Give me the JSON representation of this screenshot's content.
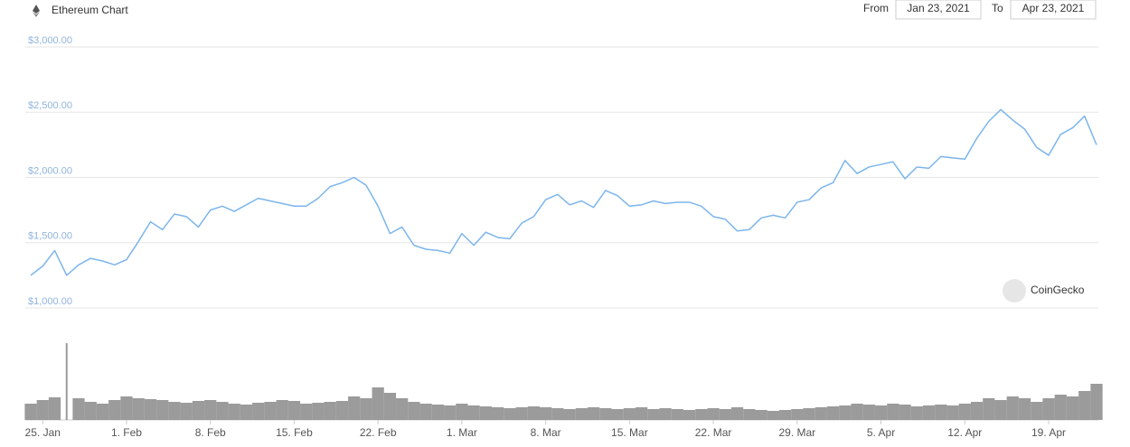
{
  "chart_data": {
    "type": "line",
    "title": "Ethereum Chart",
    "from_label": "From",
    "from_value": "Jan 23, 2021",
    "to_label": "To",
    "to_value": "Apr 23, 2021",
    "watermark": "CoinGecko",
    "categories": [
      null,
      "25. Jan",
      null,
      null,
      null,
      null,
      null,
      null,
      "1. Feb",
      null,
      null,
      null,
      null,
      null,
      null,
      "8. Feb",
      null,
      null,
      null,
      null,
      null,
      null,
      "15. Feb",
      null,
      null,
      null,
      null,
      null,
      null,
      "22. Feb",
      null,
      null,
      null,
      null,
      null,
      null,
      "1. Mar",
      null,
      null,
      null,
      null,
      null,
      null,
      "8. Mar",
      null,
      null,
      null,
      null,
      null,
      null,
      "15. Mar",
      null,
      null,
      null,
      null,
      null,
      null,
      "22. Mar",
      null,
      null,
      null,
      null,
      null,
      null,
      "29. Mar",
      null,
      null,
      null,
      null,
      null,
      null,
      "5. Apr",
      null,
      null,
      null,
      null,
      null,
      null,
      "12. Apr",
      null,
      null,
      null,
      null,
      null,
      null,
      "19. Apr",
      null,
      null,
      null,
      null
    ],
    "values": [
      1250,
      1320,
      1440,
      1250,
      1330,
      1380,
      1360,
      1330,
      1370,
      1510,
      1660,
      1600,
      1720,
      1700,
      1620,
      1750,
      1780,
      1740,
      1790,
      1840,
      1820,
      1800,
      1780,
      1780,
      1840,
      1930,
      1960,
      2000,
      1940,
      1780,
      1570,
      1620,
      1480,
      1450,
      1440,
      1420,
      1570,
      1480,
      1580,
      1540,
      1530,
      1650,
      1700,
      1830,
      1870,
      1790,
      1820,
      1770,
      1900,
      1860,
      1780,
      1790,
      1820,
      1800,
      1810,
      1810,
      1780,
      1700,
      1680,
      1590,
      1600,
      1690,
      1710,
      1690,
      1810,
      1830,
      1920,
      1960,
      2130,
      2030,
      2080,
      2100,
      2120,
      1990,
      2080,
      2070,
      2160,
      2150,
      2140,
      2300,
      2430,
      2520,
      2440,
      2370,
      2230,
      2170,
      2330,
      2380,
      2470,
      2250
    ],
    "color": "#7cb5ec",
    "ylim": [
      1000,
      3000
    ],
    "yticks": [
      {
        "value": 1000,
        "label": "$1,000.00"
      },
      {
        "value": 1500,
        "label": "$1,500.00"
      },
      {
        "value": 2000,
        "label": "$2,000.00"
      },
      {
        "value": 2500,
        "label": "$2,500.00"
      },
      {
        "value": 3000,
        "label": "$3,000.00"
      }
    ],
    "grid": true,
    "volume": {
      "axis": "y2",
      "color": "#8a8a8a",
      "values": [
        18,
        22,
        25,
        85,
        24,
        20,
        18,
        22,
        26,
        24,
        23,
        22,
        20,
        19,
        21,
        22,
        20,
        18,
        17,
        19,
        20,
        22,
        21,
        18,
        19,
        20,
        21,
        26,
        24,
        36,
        30,
        24,
        20,
        18,
        17,
        16,
        18,
        16,
        15,
        14,
        13,
        14,
        15,
        14,
        13,
        12,
        13,
        14,
        13,
        12,
        13,
        14,
        12,
        13,
        12,
        11,
        12,
        13,
        12,
        14,
        12,
        11,
        10,
        11,
        12,
        13,
        14,
        15,
        16,
        18,
        17,
        16,
        18,
        17,
        15,
        16,
        17,
        16,
        18,
        20,
        24,
        22,
        26,
        24,
        20,
        24,
        28,
        26,
        32,
        40
      ]
    },
    "y2lim": [
      0,
      100
    ]
  }
}
